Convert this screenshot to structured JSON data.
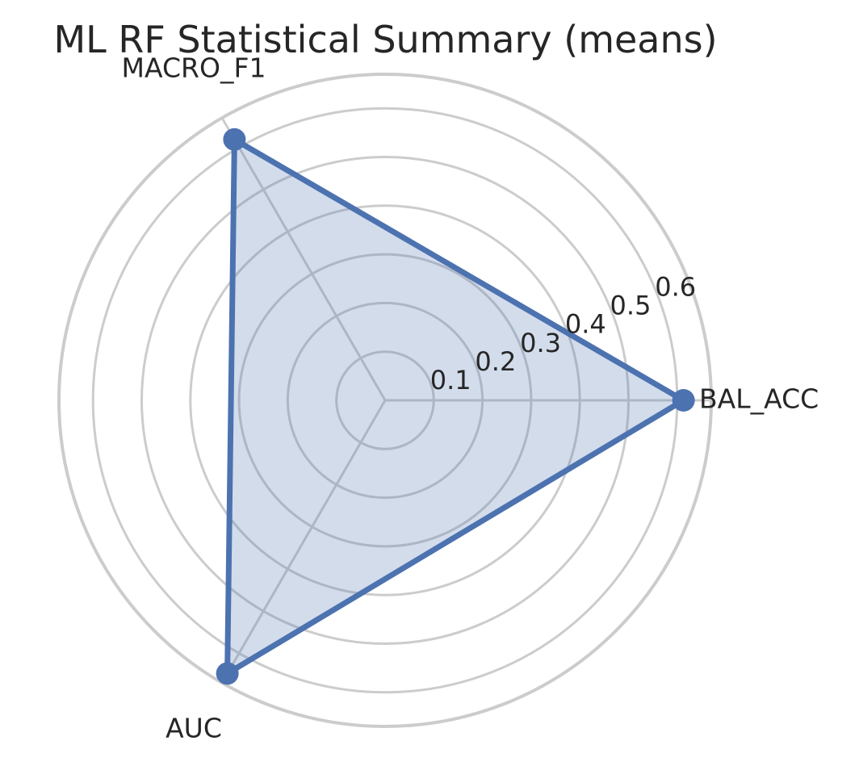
{
  "chart_data": {
    "type": "radar",
    "title": "ML RF Statistical Summary (means)",
    "categories": [
      "BAL_ACC",
      "MACRO_F1",
      "AUC"
    ],
    "series": [
      {
        "values": [
          0.613,
          0.619,
          0.648
        ]
      }
    ],
    "radial_ticks": [
      "0.1",
      "0.2",
      "0.3",
      "0.4",
      "0.5",
      "0.6"
    ],
    "rlim": [
      0,
      0.67
    ],
    "grid": true,
    "legend": "none",
    "colors": {
      "series": "#4c72b0",
      "grid": "#cccccc",
      "text": "#262626"
    }
  }
}
